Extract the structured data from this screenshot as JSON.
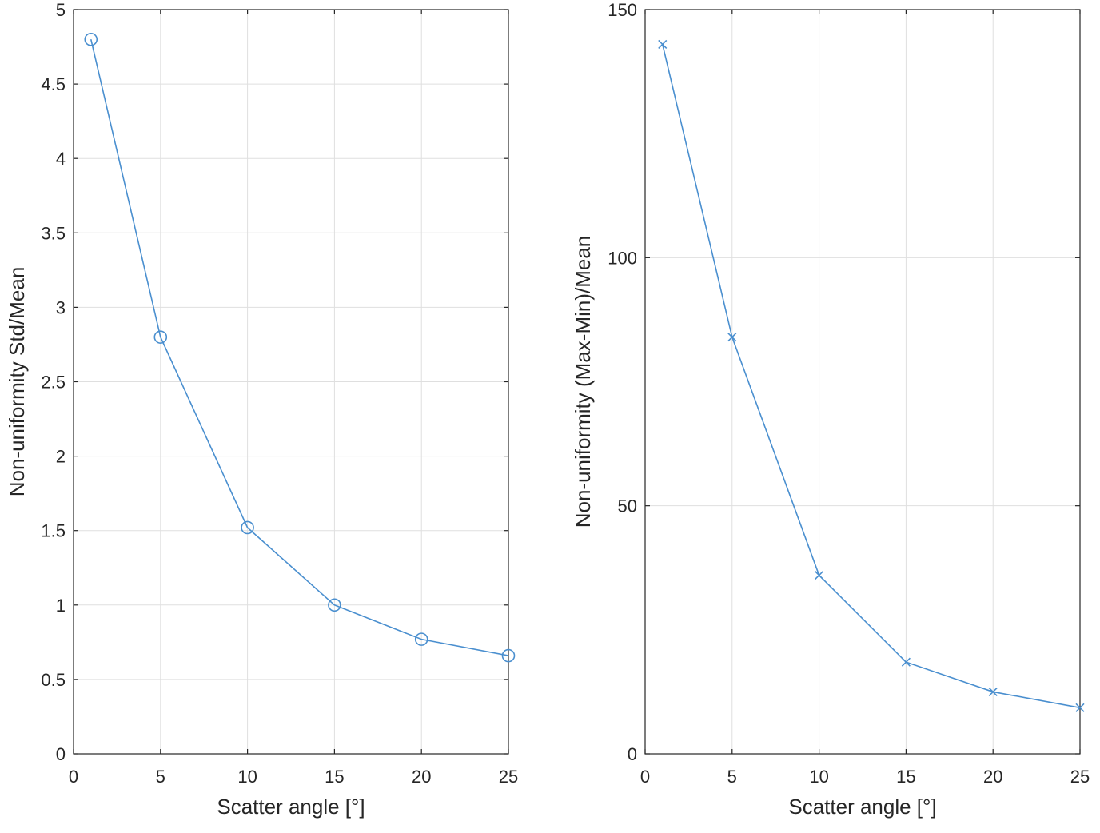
{
  "chart_data": [
    {
      "type": "line",
      "xlabel": "Scatter angle [°]",
      "ylabel": "Non-uniformity Std/Mean",
      "xlim": [
        0,
        25
      ],
      "ylim": [
        0,
        5
      ],
      "xticks": [
        0,
        5,
        10,
        15,
        20,
        25
      ],
      "yticks": [
        0,
        0.5,
        1,
        1.5,
        2,
        2.5,
        3,
        3.5,
        4,
        4.5,
        5
      ],
      "xtick_labels": [
        "0",
        "5",
        "10",
        "15",
        "20",
        "25"
      ],
      "ytick_labels": [
        "0",
        "0.5",
        "1",
        "1.5",
        "2",
        "2.5",
        "3",
        "3.5",
        "4",
        "4.5",
        "5"
      ],
      "grid": true,
      "marker": "circle",
      "color": "#4a8fcf",
      "x": [
        1,
        5,
        10,
        15,
        20,
        25
      ],
      "y": [
        4.8,
        2.8,
        1.52,
        1.0,
        0.77,
        0.66
      ]
    },
    {
      "type": "line",
      "xlabel": "Scatter angle [°]",
      "ylabel": "Non-uniformity (Max-Min)/Mean",
      "xlim": [
        0,
        25
      ],
      "ylim": [
        0,
        150
      ],
      "xticks": [
        0,
        5,
        10,
        15,
        20,
        25
      ],
      "yticks": [
        0,
        50,
        100,
        150
      ],
      "xtick_labels": [
        "0",
        "5",
        "10",
        "15",
        "20",
        "25"
      ],
      "ytick_labels": [
        "0",
        "50",
        "100",
        "150"
      ],
      "grid": true,
      "marker": "x",
      "color": "#4a8fcf",
      "x": [
        1,
        5,
        10,
        15,
        20,
        25
      ],
      "y": [
        143,
        84,
        36,
        18.5,
        12.5,
        9.3
      ]
    }
  ]
}
